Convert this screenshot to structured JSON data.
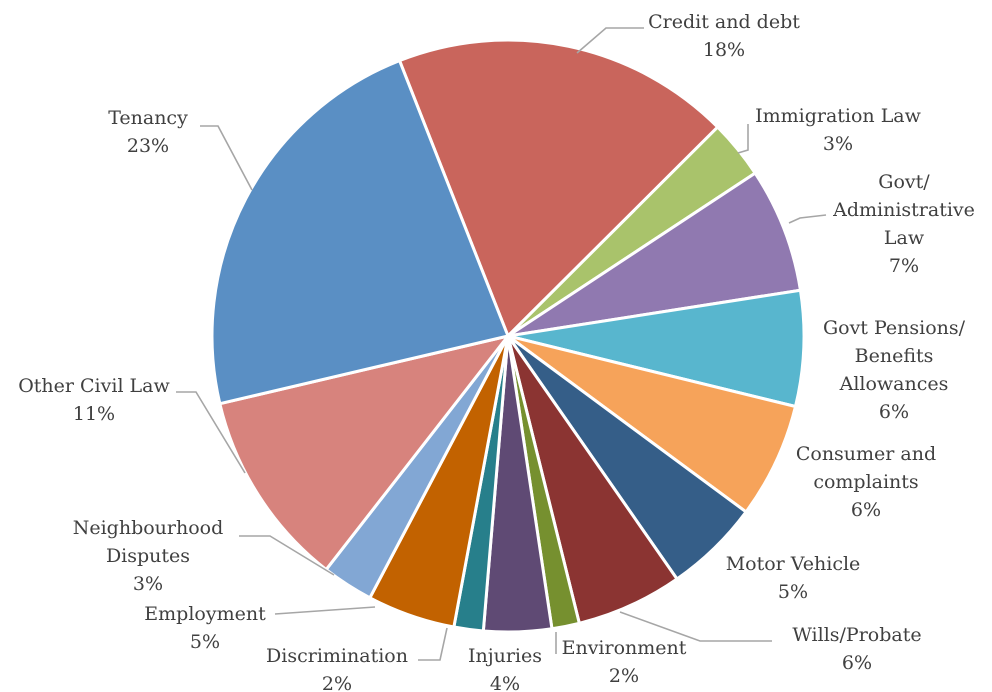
{
  "chart_data": {
    "type": "pie",
    "title": "",
    "slices": [
      {
        "label": [
          "Credit and debt"
        ],
        "value_label": "18%",
        "value": 18.5,
        "color": "#C9655C"
      },
      {
        "label": [
          "Immigration Law"
        ],
        "value_label": "3%",
        "value": 3.2,
        "color": "#A9C36B"
      },
      {
        "label": [
          "Govt/",
          "Administrative",
          "Law"
        ],
        "value_label": "7%",
        "value": 6.8,
        "color": "#9079B0"
      },
      {
        "label": [
          "Govt Pensions/",
          "Benefits",
          "Allowances"
        ],
        "value_label": "6%",
        "value": 6.3,
        "color": "#58B6CE"
      },
      {
        "label": [
          "Consumer and",
          "complaints"
        ],
        "value_label": "6%",
        "value": 6.3,
        "color": "#F6A35A"
      },
      {
        "label": [
          "Motor Vehicle"
        ],
        "value_label": "5%",
        "value": 5.2,
        "color": "#355E88"
      },
      {
        "label": [
          "Wills/Probate"
        ],
        "value_label": "6%",
        "value": 5.8,
        "color": "#8B3432"
      },
      {
        "label": [
          "Environment"
        ],
        "value_label": "2%",
        "value": 1.5,
        "color": "#76902F"
      },
      {
        "label": [
          "Injuries"
        ],
        "value_label": "4%",
        "value": 3.7,
        "color": "#5F4A74"
      },
      {
        "label": [
          "Discrimination"
        ],
        "value_label": "2%",
        "value": 1.6,
        "color": "#277F8B"
      },
      {
        "label": [
          "Employment"
        ],
        "value_label": "5%",
        "value": 4.8,
        "color": "#C26200"
      },
      {
        "label": [
          "Neighbourhood",
          "Disputes"
        ],
        "value_label": "3%",
        "value": 2.8,
        "color": "#82A7D4"
      },
      {
        "label": [
          "Other Civil Law"
        ],
        "value_label": "11%",
        "value": 10.8,
        "color": "#D7837D"
      },
      {
        "label": [
          "Tenancy"
        ],
        "value_label": "23%",
        "value": 22.7,
        "color": "#5A8FC4"
      }
    ],
    "start_slice": "Credit and debt",
    "direction": "clockwise",
    "legend": "none",
    "leader_line_color": "#A6A6A6"
  }
}
